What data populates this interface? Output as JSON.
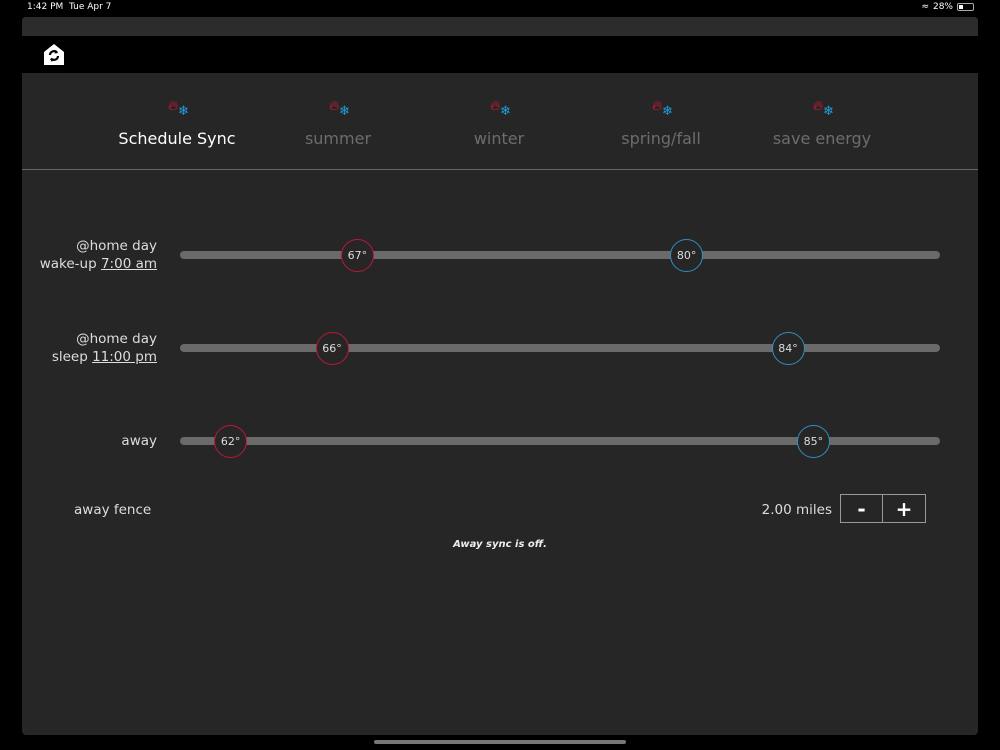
{
  "status_bar": {
    "time": "1:42 PM",
    "date": "Tue Apr 7",
    "battery": "28%",
    "battery_level": 0.28
  },
  "nav": {
    "icon": "home-sync-icon"
  },
  "tabs": [
    {
      "label": "Schedule Sync",
      "active": true
    },
    {
      "label": "summer",
      "active": false
    },
    {
      "label": "winter",
      "active": false
    },
    {
      "label": "spring/fall",
      "active": false
    },
    {
      "label": "save energy",
      "active": false
    }
  ],
  "slider_range": {
    "min": 60,
    "max": 90,
    "unit": "°"
  },
  "rows": [
    {
      "line1": "@home day",
      "line2_prefix": "wake-up ",
      "time": "7:00 am",
      "heat": "67°",
      "cool": "80°",
      "heat_value": 67,
      "cool_value": 80
    },
    {
      "line1": "@home day",
      "line2_prefix": "sleep ",
      "time": "11:00 pm",
      "heat": "66°",
      "cool": "84°",
      "heat_value": 66,
      "cool_value": 84
    },
    {
      "line1": "away",
      "heat": "62°",
      "cool": "85°",
      "heat_value": 62,
      "cool_value": 85
    }
  ],
  "fence": {
    "label": "away fence",
    "value": "2.00 miles",
    "minus": "-",
    "plus": "+"
  },
  "note": "Away sync is off.",
  "colors": {
    "heat": "#c0163a",
    "cool": "#2f8fc4",
    "flame": "#e8173b",
    "snow": "#1ea1e0"
  }
}
